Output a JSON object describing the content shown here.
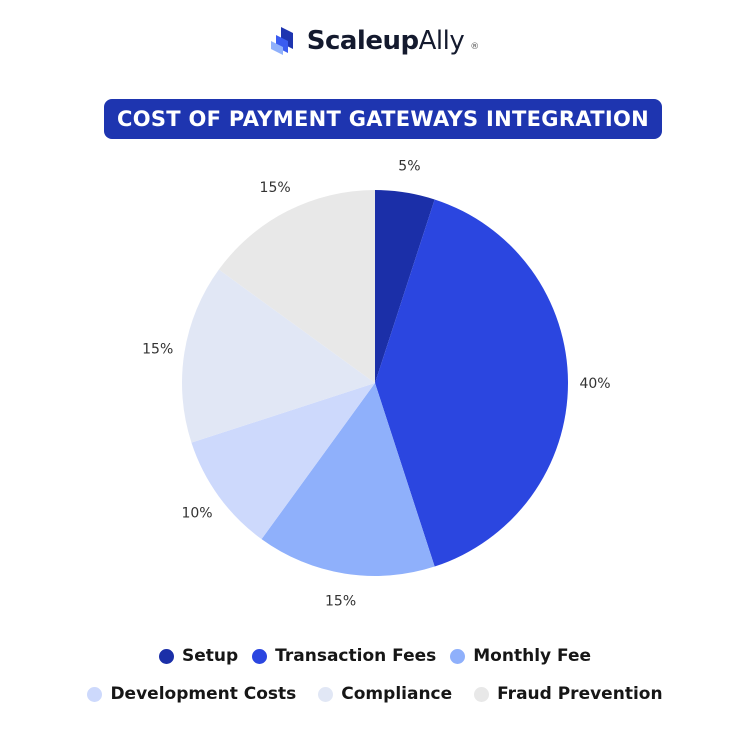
{
  "logo": {
    "brand": "ScaleupAlly",
    "part1": "Scaleup",
    "part2": "Ally",
    "registered": "®"
  },
  "chart_data": {
    "type": "pie",
    "title": "COST OF PAYMENT GATEWAYS INTEGRATION",
    "start": "top, clockwise",
    "legend_placement": "bottom",
    "slices": [
      {
        "name": "Setup",
        "value": 5,
        "label": "5%",
        "color": "#1b2fa8"
      },
      {
        "name": "Transaction Fees",
        "value": 40,
        "label": "40%",
        "color": "#2b46e0"
      },
      {
        "name": "Monthly Fee",
        "value": 15,
        "label": "15%",
        "color": "#8fb0fb"
      },
      {
        "name": "Development Costs",
        "value": 10,
        "label": "10%",
        "color": "#cdd9fc"
      },
      {
        "name": "Compliance",
        "value": 15,
        "label": "15%",
        "color": "#e1e7f5"
      },
      {
        "name": "Fraud Prevention",
        "value": 15,
        "label": "15%",
        "color": "#e8e8e8"
      }
    ]
  }
}
